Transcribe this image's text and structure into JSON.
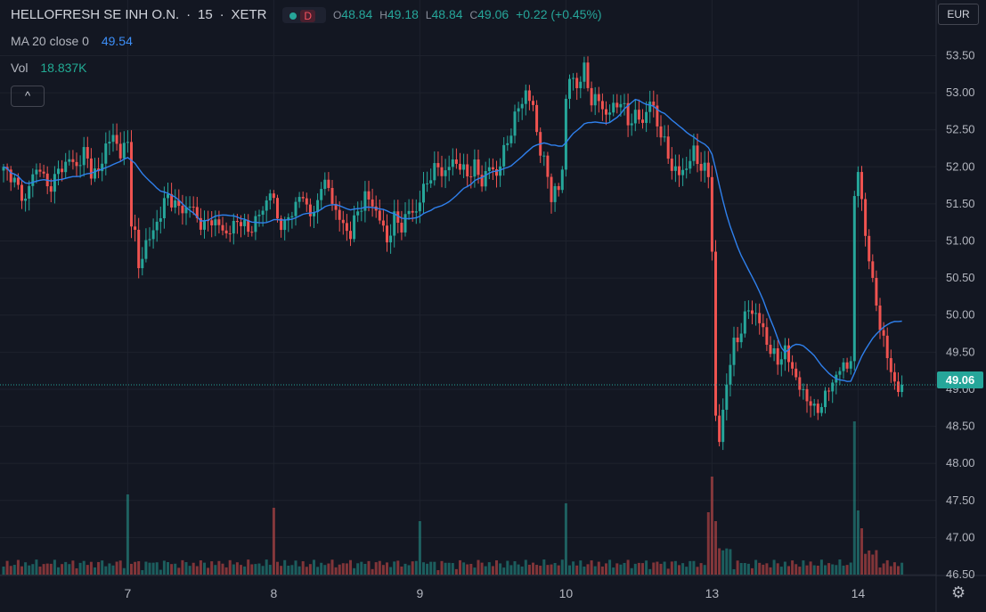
{
  "header": {
    "symbol": "HELLOFRESH SE INH O.N.",
    "sep1": "·",
    "interval": "15",
    "sep2": "·",
    "exchange": "XETR",
    "badge": "D",
    "open_label": "O",
    "open": "48.84",
    "high_label": "H",
    "high": "49.18",
    "low_label": "L",
    "low": "48.84",
    "close_label": "C",
    "close": "49.06",
    "change": "+0.22 (+0.45%)"
  },
  "ma_legend": {
    "label": "MA 20 close 0",
    "value": "49.54"
  },
  "vol_legend": {
    "label": "Vol",
    "value": "18.837K"
  },
  "controls": {
    "collapse": "^",
    "currency": "EUR",
    "settings": "⚙"
  },
  "colors": {
    "up": "#26a69a",
    "down": "#ef5350",
    "ma": "#2f80ed",
    "bg": "#131722",
    "grid": "#1e222d"
  },
  "chart_data": {
    "type": "candlestick",
    "ylim": [
      46.5,
      53.65
    ],
    "y_ticks": [
      "46.50",
      "47.00",
      "47.50",
      "48.00",
      "48.50",
      "49.00",
      "49.50",
      "50.00",
      "50.50",
      "51.00",
      "51.50",
      "52.00",
      "52.50",
      "53.00",
      "53.50"
    ],
    "x_ticks": [
      {
        "label": "7",
        "bar": 34
      },
      {
        "label": "8",
        "bar": 74
      },
      {
        "label": "9",
        "bar": 114
      },
      {
        "label": "10",
        "bar": 154
      },
      {
        "label": "13",
        "bar": 194
      },
      {
        "label": "14",
        "bar": 234
      }
    ],
    "total_bars": 247,
    "last_price": "49.06",
    "series_anchors": [
      [
        0,
        51.95
      ],
      [
        2,
        51.9
      ],
      [
        4,
        51.7
      ],
      [
        6,
        51.55
      ],
      [
        8,
        51.9
      ],
      [
        10,
        52.0
      ],
      [
        12,
        51.7
      ],
      [
        14,
        51.85
      ],
      [
        16,
        52.0
      ],
      [
        18,
        52.1
      ],
      [
        20,
        52.0
      ],
      [
        22,
        52.2
      ],
      [
        24,
        51.95
      ],
      [
        26,
        51.9
      ],
      [
        28,
        52.3
      ],
      [
        30,
        52.4
      ],
      [
        32,
        52.2
      ],
      [
        34,
        52.3
      ],
      [
        35,
        51.3
      ],
      [
        36,
        51.1
      ],
      [
        37,
        50.6
      ],
      [
        39,
        51.0
      ],
      [
        41,
        51.1
      ],
      [
        43,
        51.4
      ],
      [
        45,
        51.6
      ],
      [
        47,
        51.5
      ],
      [
        49,
        51.4
      ],
      [
        51,
        51.5
      ],
      [
        53,
        51.3
      ],
      [
        55,
        51.2
      ],
      [
        57,
        51.3
      ],
      [
        59,
        51.2
      ],
      [
        61,
        51.1
      ],
      [
        63,
        51.2
      ],
      [
        65,
        51.3
      ],
      [
        67,
        51.1
      ],
      [
        69,
        51.3
      ],
      [
        71,
        51.4
      ],
      [
        73,
        51.7
      ],
      [
        75,
        51.3
      ],
      [
        77,
        51.2
      ],
      [
        79,
        51.4
      ],
      [
        81,
        51.6
      ],
      [
        83,
        51.5
      ],
      [
        85,
        51.3
      ],
      [
        87,
        51.8
      ],
      [
        89,
        51.7
      ],
      [
        91,
        51.4
      ],
      [
        93,
        51.2
      ],
      [
        95,
        51.1
      ],
      [
        97,
        51.4
      ],
      [
        99,
        51.6
      ],
      [
        101,
        51.5
      ],
      [
        103,
        51.3
      ],
      [
        105,
        51.0
      ],
      [
        107,
        51.3
      ],
      [
        109,
        51.2
      ],
      [
        111,
        51.4
      ],
      [
        113,
        51.4
      ],
      [
        115,
        51.7
      ],
      [
        117,
        51.9
      ],
      [
        119,
        52.0
      ],
      [
        121,
        51.9
      ],
      [
        123,
        52.1
      ],
      [
        125,
        52.0
      ],
      [
        127,
        51.9
      ],
      [
        129,
        52.0
      ],
      [
        131,
        51.8
      ],
      [
        133,
        52.0
      ],
      [
        135,
        51.9
      ],
      [
        137,
        52.2
      ],
      [
        139,
        52.5
      ],
      [
        141,
        52.8
      ],
      [
        143,
        53.0
      ],
      [
        145,
        52.8
      ],
      [
        147,
        52.2
      ],
      [
        149,
        51.9
      ],
      [
        150,
        51.6
      ],
      [
        152,
        51.7
      ],
      [
        153,
        52.0
      ],
      [
        154,
        52.9
      ],
      [
        155,
        53.2
      ],
      [
        157,
        53.1
      ],
      [
        159,
        53.3
      ],
      [
        161,
        52.9
      ],
      [
        163,
        52.9
      ],
      [
        165,
        52.7
      ],
      [
        167,
        52.8
      ],
      [
        169,
        52.9
      ],
      [
        171,
        52.6
      ],
      [
        173,
        52.7
      ],
      [
        175,
        52.6
      ],
      [
        177,
        52.9
      ],
      [
        179,
        52.6
      ],
      [
        181,
        52.3
      ],
      [
        183,
        52.0
      ],
      [
        185,
        51.9
      ],
      [
        187,
        52.0
      ],
      [
        189,
        52.2
      ],
      [
        191,
        52.0
      ],
      [
        193,
        51.9
      ],
      [
        194,
        50.9
      ],
      [
        195,
        48.6
      ],
      [
        196,
        48.3
      ],
      [
        198,
        49.1
      ],
      [
        200,
        49.6
      ],
      [
        202,
        49.8
      ],
      [
        204,
        50.1
      ],
      [
        206,
        50.0
      ],
      [
        208,
        49.8
      ],
      [
        210,
        49.5
      ],
      [
        212,
        49.4
      ],
      [
        214,
        49.5
      ],
      [
        216,
        49.3
      ],
      [
        218,
        49.0
      ],
      [
        220,
        48.9
      ],
      [
        222,
        48.7
      ],
      [
        224,
        48.8
      ],
      [
        226,
        49.0
      ],
      [
        228,
        49.2
      ],
      [
        230,
        49.3
      ],
      [
        232,
        49.4
      ],
      [
        233,
        51.5
      ],
      [
        234,
        52.0
      ],
      [
        235,
        51.6
      ],
      [
        236,
        51.0
      ],
      [
        238,
        50.5
      ],
      [
        240,
        49.8
      ],
      [
        242,
        49.5
      ],
      [
        244,
        49.0
      ],
      [
        246,
        49.06
      ]
    ],
    "volume_profile": "low baseline with spikes near days 7, 8, 9, 10 and large spikes at the 13th open and 14th open"
  }
}
